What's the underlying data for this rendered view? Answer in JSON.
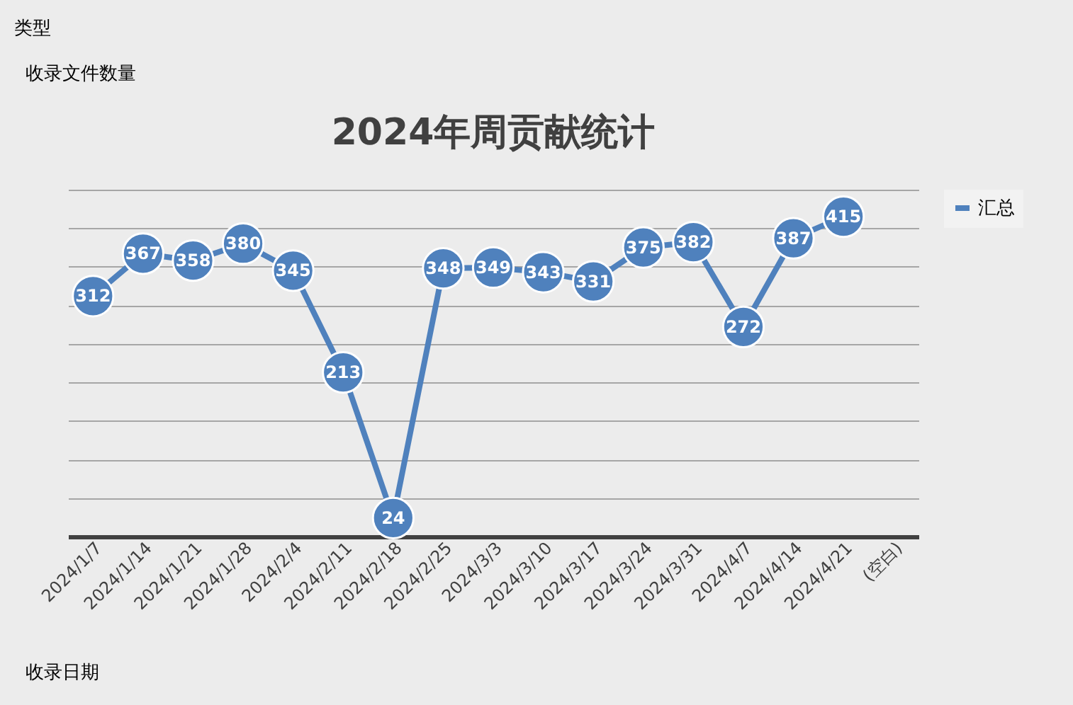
{
  "chart_data": {
    "type": "line",
    "title": "2024年周贡献统计",
    "categories": [
      "2024/1/7",
      "2024/1/14",
      "2024/1/21",
      "2024/1/28",
      "2024/2/4",
      "2024/2/11",
      "2024/2/18",
      "2024/2/25",
      "2024/3/3",
      "2024/3/10",
      "2024/3/17",
      "2024/3/24",
      "2024/3/31",
      "2024/4/7",
      "2024/4/14",
      "2024/4/21",
      "(空白)"
    ],
    "series": [
      {
        "name": "汇总",
        "color": "#4f81bd",
        "values": [
          312,
          367,
          358,
          380,
          345,
          213,
          24,
          348,
          349,
          343,
          331,
          375,
          382,
          272,
          387,
          415,
          null
        ]
      }
    ],
    "tick_labels": "x",
    "grid": "y",
    "legend": "right",
    "marker": "circle",
    "line_style": "solid",
    "data_labels": true,
    "annotations": [
      "类型",
      "收录文件数量",
      "收录日期"
    ]
  }
}
